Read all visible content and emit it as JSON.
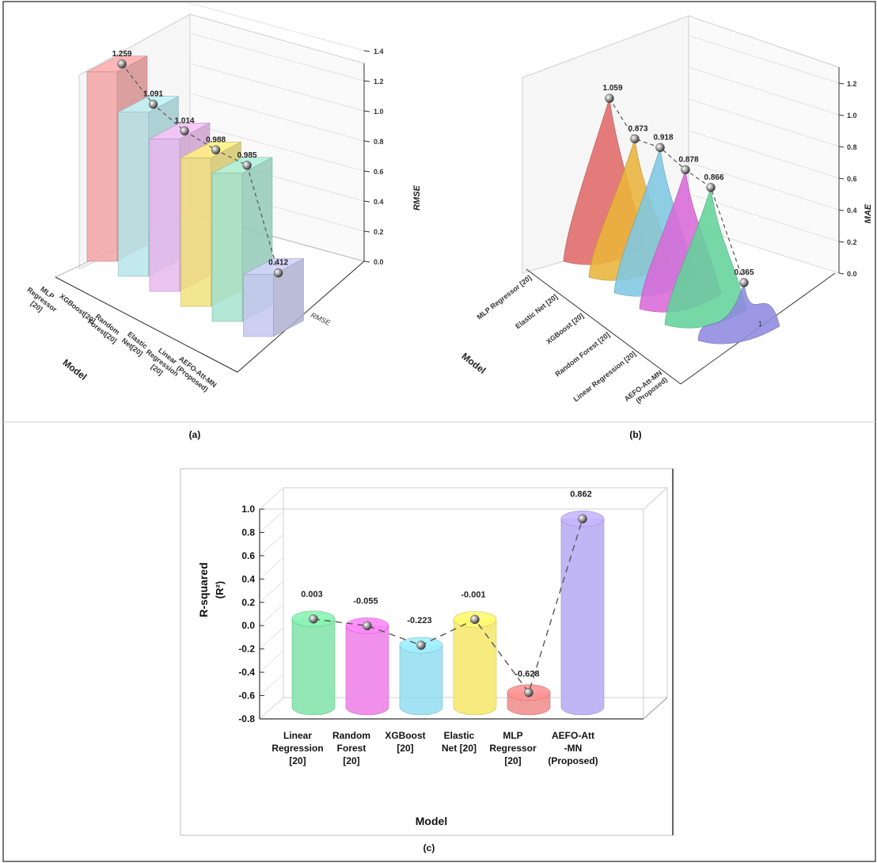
{
  "chart_data": [
    {
      "type": "bar",
      "panel": "(a)",
      "categories": [
        "MLP Regressor [20]",
        "XGBoost[20]",
        "Random Forest[20]",
        "Elastic Net[20]",
        "Linear Regression [20]",
        "AEFO-Att-MN (Proposed)"
      ],
      "category_lines": [
        [
          "MLP",
          "Regressor",
          "[20]"
        ],
        [
          "XGBoost[20]"
        ],
        [
          "Random",
          "Forest[20]"
        ],
        [
          "Elastic",
          "Net[20]"
        ],
        [
          "Linear",
          "Regression",
          "[20]"
        ],
        [
          "AEFO-Att-MN",
          "(Proposed)"
        ]
      ],
      "values": [
        1.259,
        1.091,
        1.014,
        0.988,
        0.985,
        0.412
      ],
      "value_labels": [
        "1.259",
        "1.091",
        "1.014",
        "0.988",
        "0.985",
        "0.412"
      ],
      "colors": [
        "#f2a5a5",
        "#b7e6ea",
        "#e8b8ec",
        "#f1e27c",
        "#a6e3cf",
        "#c6c8ee"
      ],
      "ylabel": "RMSE",
      "xlabel": "Model",
      "depth_label": "RMSE",
      "ylim": [
        0.0,
        1.4
      ],
      "yticks": [
        "0.0",
        "0.2",
        "0.4",
        "0.6",
        "0.8",
        "1.0",
        "1.2",
        "1.4"
      ]
    },
    {
      "type": "area",
      "panel": "(b)",
      "categories": [
        "MLP Regressor [20]",
        "Elastic Net [20]",
        "XGBoost [20]",
        "Random Forest [20]",
        "Linear Regression [20]",
        "AEFO-Att-MN (Proposed)"
      ],
      "category_lines": [
        [
          "MLP Regressor [20]"
        ],
        [
          "Elastic Net [20]"
        ],
        [
          "XGBoost [20]"
        ],
        [
          "Random Forest [20]"
        ],
        [
          "Linear Regression [20]"
        ],
        [
          "AEFO-Att-MN",
          "(Proposed)"
        ]
      ],
      "values": [
        1.059,
        0.873,
        0.918,
        0.878,
        0.866,
        0.365
      ],
      "value_labels": [
        "1.059",
        "0.873",
        "0.918",
        "0.878",
        "0.866",
        "0.365"
      ],
      "colors": [
        "#e06a6a",
        "#e9b43a",
        "#7ec8e3",
        "#d96ad8",
        "#63d39a",
        "#8f8ae0"
      ],
      "ylabel": "MAE",
      "xlabel": "Model",
      "depth_label": "1",
      "ylim": [
        0.0,
        1.2
      ],
      "yticks": [
        "0.0",
        "0.2",
        "0.4",
        "0.6",
        "0.8",
        "1.0",
        "1.2"
      ]
    },
    {
      "type": "bar",
      "panel": "(c)",
      "categories": [
        "Linear Regression [20]",
        "Random Forest [20]",
        "XGBoost [20]",
        "Elastic Net [20]",
        "MLP Regressor [20]",
        "AEFO-Att -MN (Proposed)"
      ],
      "values": [
        0.003,
        -0.055,
        -0.223,
        -0.001,
        -0.628,
        0.862
      ],
      "value_labels": [
        "0.003",
        "-0.055",
        "-0.223",
        "-0.001",
        "-0.628",
        "0.862"
      ],
      "colors": [
        "#7fe3a8",
        "#ee7ee8",
        "#93ddf0",
        "#f6e86a",
        "#f08a8a",
        "#b6a9f2"
      ],
      "ylabel": "R-squared",
      "ylabel2": "(R²)",
      "xlabel": "Model",
      "ylim": [
        -0.8,
        1.0
      ],
      "yticks": [
        "-0.8",
        "-0.6",
        "-0.4",
        "-0.2",
        "0.0",
        "0.2",
        "0.4",
        "0.6",
        "0.8",
        "1.0"
      ]
    }
  ],
  "captions": {
    "a": "(a)",
    "b": "(b)",
    "c": "(c)"
  }
}
